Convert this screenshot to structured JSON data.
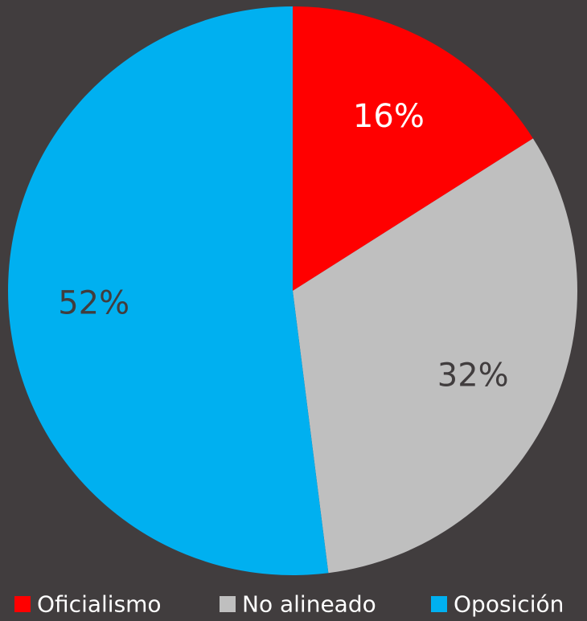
{
  "chart_data": {
    "type": "pie",
    "title": "",
    "categories": [
      "Oficialismo",
      "No alineado",
      "Oposición"
    ],
    "values": [
      16,
      32,
      52
    ],
    "value_labels": [
      "16%",
      "32%",
      "52%"
    ],
    "colors": [
      "#ff0000",
      "#bfbfbf",
      "#00b0f0"
    ],
    "label_colors": [
      "#ffffff",
      "#413d3e",
      "#413d3e"
    ],
    "start_angle_deg": 0,
    "direction": "clockwise",
    "legend_position": "bottom",
    "background": "#413d3e"
  }
}
